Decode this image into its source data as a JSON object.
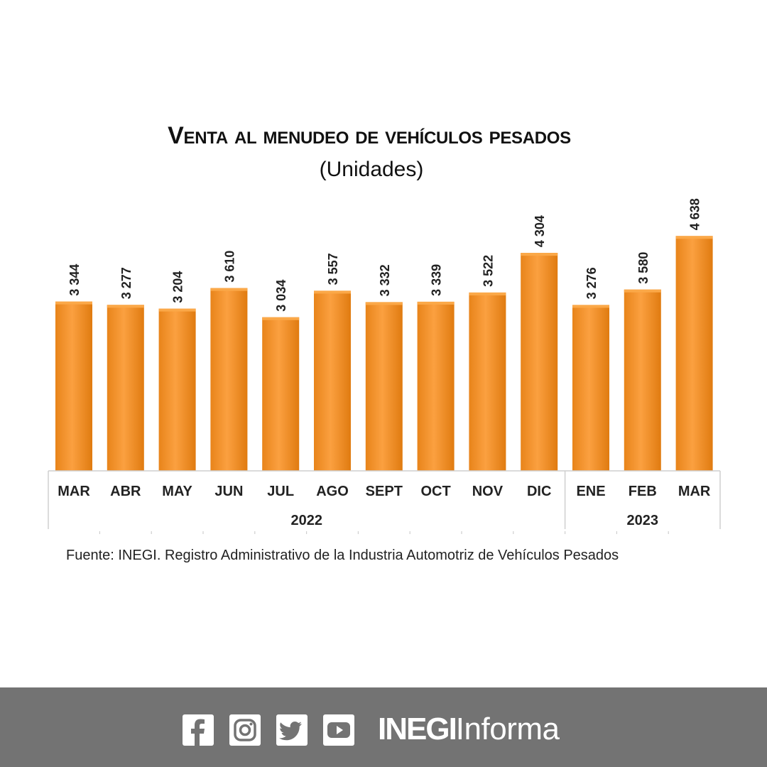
{
  "chart_data": {
    "type": "bar",
    "title": "Venta al menudeo de vehículos pesados",
    "subtitle": "(Unidades)",
    "categories": [
      "MAR",
      "ABR",
      "MAY",
      "JUN",
      "JUL",
      "AGO",
      "SEPT",
      "OCT",
      "NOV",
      "DIC",
      "ENE",
      "FEB",
      "MAR"
    ],
    "values": [
      3344,
      3277,
      3204,
      3610,
      3034,
      3557,
      3332,
      3339,
      3522,
      4304,
      3276,
      3580,
      4638
    ],
    "value_labels": [
      "3 344",
      "3 277",
      "3 204",
      "3 610",
      "3 034",
      "3 557",
      "3 332",
      "3 339",
      "3 522",
      "4 304",
      "3 276",
      "3 580",
      "4 638"
    ],
    "groups": [
      {
        "label": "2022",
        "count": 10
      },
      {
        "label": "2023",
        "count": 3
      }
    ],
    "ylim": [
      0,
      5000
    ],
    "grid": false,
    "legend": "none",
    "bar_color": "#F39325",
    "bar_highlight": "#FBA848",
    "bar_shade": "#E07B10"
  },
  "source": "Fuente: INEGI. Registro Administrativo de la Industria Automotriz de Vehículos Pesados",
  "footer": {
    "background": "#737373",
    "icons": [
      "facebook-icon",
      "instagram-icon",
      "twitter-icon",
      "youtube-icon"
    ],
    "brand_bold": "INEGI",
    "brand_light": "Informa"
  }
}
